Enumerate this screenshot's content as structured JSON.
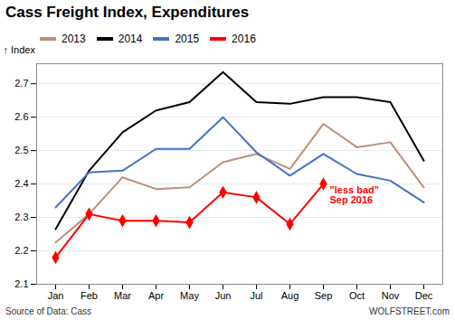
{
  "chart_data": {
    "type": "line",
    "title": "Cass Freight Index, Expenditures",
    "y_label": "Index",
    "source": "Source of Data: Cass",
    "credit": "WOLFSTREET.com",
    "annotation": [
      "\"less bad\"",
      "Sep 2016"
    ],
    "categories": [
      "Jan",
      "Feb",
      "Mar",
      "Apr",
      "May",
      "Jun",
      "Jul",
      "Aug",
      "Sep",
      "Oct",
      "Nov",
      "Dec"
    ],
    "series": [
      {
        "name": "2013",
        "color": "#bc8f7a",
        "values": [
          2.225,
          2.31,
          2.42,
          2.385,
          2.39,
          2.465,
          2.49,
          2.445,
          2.58,
          2.51,
          2.525,
          2.39
        ]
      },
      {
        "name": "2014",
        "color": "#000000",
        "values": [
          2.265,
          2.44,
          2.555,
          2.62,
          2.645,
          2.735,
          2.645,
          2.64,
          2.66,
          2.66,
          2.645,
          2.47
        ]
      },
      {
        "name": "2015",
        "color": "#4472c4",
        "values": [
          2.33,
          2.435,
          2.44,
          2.505,
          2.505,
          2.6,
          2.495,
          2.425,
          2.49,
          2.43,
          2.41,
          2.345
        ]
      },
      {
        "name": "2016",
        "color": "#ff0000",
        "marker": "diamond",
        "values": [
          2.18,
          2.31,
          2.29,
          2.29,
          2.285,
          2.375,
          2.36,
          2.28,
          2.4,
          null,
          null,
          null
        ]
      }
    ],
    "ylim": [
      2.1,
      2.76
    ],
    "yticks": [
      2.1,
      2.2,
      2.3,
      2.4,
      2.5,
      2.6,
      2.7
    ],
    "grid": true,
    "legend": "top"
  }
}
